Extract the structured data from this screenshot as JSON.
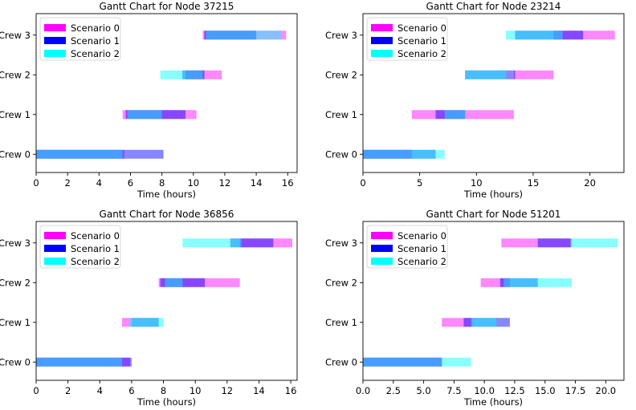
{
  "figure": {
    "colors": {
      "Scenario 0": "#ff00ff",
      "Scenario 1": "#0000ff",
      "Scenario 2": "#00ffff"
    }
  },
  "chart_data": [
    {
      "type": "gantt",
      "title": "Gantt Chart for Node 37215",
      "xlabel": "Time (hours)",
      "xlim": [
        0,
        16.6
      ],
      "xticks": [
        0,
        2,
        4,
        6,
        8,
        10,
        12,
        14,
        16
      ],
      "xtick_labels": [
        "0",
        "2",
        "4",
        "6",
        "8",
        "10",
        "12",
        "14",
        "16"
      ],
      "crews": [
        "Crew 0",
        "Crew 1",
        "Crew 2",
        "Crew 3"
      ],
      "legend": {
        "location": "top-left",
        "entries": [
          "Scenario 0",
          "Scenario 1",
          "Scenario 2"
        ]
      },
      "tasks": [
        {
          "scenario": "Scenario 0",
          "crew": "Crew 0",
          "start": 0.0,
          "end": 5.6
        },
        {
          "scenario": "Scenario 1",
          "crew": "Crew 0",
          "start": 0.0,
          "end": 8.1
        },
        {
          "scenario": "Scenario 2",
          "crew": "Crew 0",
          "start": 0.0,
          "end": 5.5
        },
        {
          "scenario": "Scenario 0",
          "crew": "Crew 1",
          "start": 5.5,
          "end": 10.2
        },
        {
          "scenario": "Scenario 1",
          "crew": "Crew 1",
          "start": 5.7,
          "end": 9.5
        },
        {
          "scenario": "Scenario 2",
          "crew": "Crew 1",
          "start": 5.8,
          "end": 8.0
        },
        {
          "scenario": "Scenario 0",
          "crew": "Crew 2",
          "start": 9.5,
          "end": 11.8
        },
        {
          "scenario": "Scenario 1",
          "crew": "Crew 2",
          "start": 9.3,
          "end": 10.7
        },
        {
          "scenario": "Scenario 2",
          "crew": "Crew 2",
          "start": 7.9,
          "end": 10.6
        },
        {
          "scenario": "Scenario 0",
          "crew": "Crew 3",
          "start": 10.6,
          "end": 15.9
        },
        {
          "scenario": "Scenario 1",
          "crew": "Crew 3",
          "start": 10.7,
          "end": 14.0
        },
        {
          "scenario": "Scenario 2",
          "crew": "Crew 3",
          "start": 10.8,
          "end": 15.6
        }
      ]
    },
    {
      "type": "gantt",
      "title": "Gantt Chart for Node 23214",
      "xlabel": "Time (hours)",
      "xlim": [
        0,
        23.0
      ],
      "xticks": [
        0,
        5,
        10,
        15,
        20
      ],
      "xtick_labels": [
        "0",
        "5",
        "10",
        "15",
        "20"
      ],
      "crews": [
        "Crew 0",
        "Crew 1",
        "Crew 2",
        "Crew 3"
      ],
      "legend": {
        "location": "top-left",
        "entries": [
          "Scenario 0",
          "Scenario 1",
          "Scenario 2"
        ]
      },
      "tasks": [
        {
          "scenario": "Scenario 0",
          "crew": "Crew 0",
          "start": 0.0,
          "end": 4.3
        },
        {
          "scenario": "Scenario 1",
          "crew": "Crew 0",
          "start": 0.0,
          "end": 6.4
        },
        {
          "scenario": "Scenario 2",
          "crew": "Crew 0",
          "start": 0.0,
          "end": 7.2
        },
        {
          "scenario": "Scenario 0",
          "crew": "Crew 1",
          "start": 4.3,
          "end": 13.3
        },
        {
          "scenario": "Scenario 1",
          "crew": "Crew 1",
          "start": 6.4,
          "end": 9.0
        },
        {
          "scenario": "Scenario 2",
          "crew": "Crew 1",
          "start": 7.2,
          "end": 9.0
        },
        {
          "scenario": "Scenario 0",
          "crew": "Crew 2",
          "start": 13.3,
          "end": 16.8
        },
        {
          "scenario": "Scenario 1",
          "crew": "Crew 2",
          "start": 9.0,
          "end": 13.4
        },
        {
          "scenario": "Scenario 2",
          "crew": "Crew 2",
          "start": 9.0,
          "end": 12.6
        },
        {
          "scenario": "Scenario 0",
          "crew": "Crew 3",
          "start": 16.8,
          "end": 22.2
        },
        {
          "scenario": "Scenario 1",
          "crew": "Crew 3",
          "start": 13.4,
          "end": 19.4
        },
        {
          "scenario": "Scenario 2",
          "crew": "Crew 3",
          "start": 12.6,
          "end": 17.6
        }
      ]
    },
    {
      "type": "gantt",
      "title": "Gantt Chart for Node 36856",
      "xlabel": "Time (hours)",
      "xlim": [
        0,
        16.4
      ],
      "xticks": [
        0,
        2,
        4,
        6,
        8,
        10,
        12,
        14,
        16
      ],
      "xtick_labels": [
        "0",
        "2",
        "4",
        "6",
        "8",
        "10",
        "12",
        "14",
        "16"
      ],
      "crews": [
        "Crew 0",
        "Crew 1",
        "Crew 2",
        "Crew 3"
      ],
      "legend": {
        "location": "top-left",
        "entries": [
          "Scenario 0",
          "Scenario 1",
          "Scenario 2"
        ]
      },
      "tasks": [
        {
          "scenario": "Scenario 0",
          "crew": "Crew 0",
          "start": 0.0,
          "end": 5.9
        },
        {
          "scenario": "Scenario 1",
          "crew": "Crew 0",
          "start": 0.0,
          "end": 6.0
        },
        {
          "scenario": "Scenario 2",
          "crew": "Crew 0",
          "start": 0.0,
          "end": 5.4
        },
        {
          "scenario": "Scenario 0",
          "crew": "Crew 1",
          "start": 5.4,
          "end": 6.0
        },
        {
          "scenario": "Scenario 1",
          "crew": "Crew 1",
          "start": 6.0,
          "end": 7.7
        },
        {
          "scenario": "Scenario 2",
          "crew": "Crew 1",
          "start": 5.9,
          "end": 8.0
        },
        {
          "scenario": "Scenario 0",
          "crew": "Crew 2",
          "start": 7.7,
          "end": 12.8
        },
        {
          "scenario": "Scenario 1",
          "crew": "Crew 2",
          "start": 7.8,
          "end": 10.6
        },
        {
          "scenario": "Scenario 2",
          "crew": "Crew 2",
          "start": 8.1,
          "end": 9.2
        },
        {
          "scenario": "Scenario 0",
          "crew": "Crew 3",
          "start": 12.8,
          "end": 16.1
        },
        {
          "scenario": "Scenario 1",
          "crew": "Crew 3",
          "start": 12.2,
          "end": 14.9
        },
        {
          "scenario": "Scenario 2",
          "crew": "Crew 3",
          "start": 9.2,
          "end": 12.9
        }
      ]
    },
    {
      "type": "gantt",
      "title": "Gantt Chart for Node 51201",
      "xlabel": "Time (hours)",
      "xlim": [
        0,
        21.5
      ],
      "xticks": [
        0,
        2.5,
        5,
        7.5,
        10,
        12.5,
        15,
        17.5,
        20
      ],
      "xtick_labels": [
        "0.0",
        "2.5",
        "5.0",
        "7.5",
        "10.0",
        "12.5",
        "15.0",
        "17.5",
        "20.0"
      ],
      "crews": [
        "Crew 0",
        "Crew 1",
        "Crew 2",
        "Crew 3"
      ],
      "legend": {
        "location": "top-left",
        "entries": [
          "Scenario 0",
          "Scenario 1",
          "Scenario 2"
        ]
      },
      "tasks": [
        {
          "scenario": "Scenario 0",
          "crew": "Crew 0",
          "start": 0.0,
          "end": 6.5
        },
        {
          "scenario": "Scenario 1",
          "crew": "Crew 0",
          "start": 0.0,
          "end": 6.5
        },
        {
          "scenario": "Scenario 2",
          "crew": "Crew 0",
          "start": 0.0,
          "end": 8.9
        },
        {
          "scenario": "Scenario 0",
          "crew": "Crew 1",
          "start": 6.5,
          "end": 9.0
        },
        {
          "scenario": "Scenario 1",
          "crew": "Crew 1",
          "start": 8.3,
          "end": 12.1
        },
        {
          "scenario": "Scenario 2",
          "crew": "Crew 1",
          "start": 8.9,
          "end": 11.0
        },
        {
          "scenario": "Scenario 0",
          "crew": "Crew 2",
          "start": 9.7,
          "end": 12.1
        },
        {
          "scenario": "Scenario 1",
          "crew": "Crew 2",
          "start": 11.3,
          "end": 14.4
        },
        {
          "scenario": "Scenario 2",
          "crew": "Crew 2",
          "start": 11.6,
          "end": 17.2
        },
        {
          "scenario": "Scenario 0",
          "crew": "Crew 3",
          "start": 11.4,
          "end": 17.2
        },
        {
          "scenario": "Scenario 1",
          "crew": "Crew 3",
          "start": 14.4,
          "end": 17.1
        },
        {
          "scenario": "Scenario 2",
          "crew": "Crew 3",
          "start": 17.1,
          "end": 21.0
        }
      ]
    }
  ]
}
